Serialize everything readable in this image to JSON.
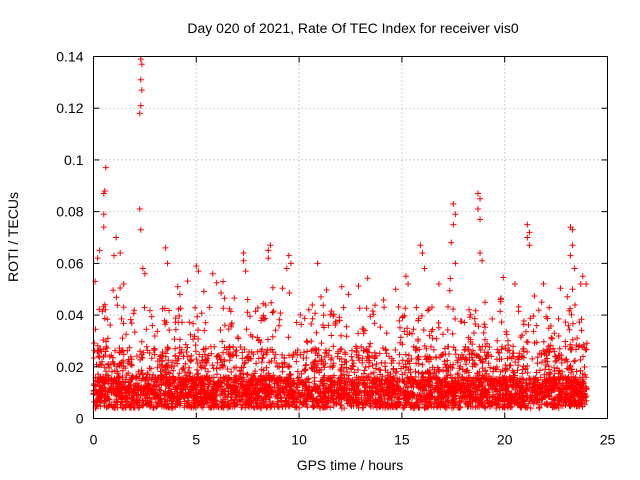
{
  "chart_data": {
    "type": "scatter",
    "title": "Day 020 of 2021, Rate Of TEC Index for receiver vis0",
    "xlabel": "GPS time / hours",
    "ylabel": "ROTI / TECUs",
    "xlim": [
      0,
      25
    ],
    "ylim": [
      0,
      0.14
    ],
    "x_ticks": [
      "0",
      "5",
      "10",
      "15",
      "20",
      "25"
    ],
    "y_ticks": [
      "0",
      "0.02",
      "0.04",
      "0.06",
      "0.08",
      "0.1",
      "0.12",
      "0.14"
    ],
    "grid": true,
    "legend": "none",
    "marker": "plus",
    "series": [
      {
        "color": "#ff0000",
        "x_range": [
          0,
          24
        ],
        "points": [
          [
            0.6,
            0.097
          ],
          [
            0.55,
            0.088
          ],
          [
            0.5,
            0.087
          ],
          [
            0.5,
            0.079
          ],
          [
            0.5,
            0.074
          ],
          [
            0.3,
            0.065
          ],
          [
            0.2,
            0.062
          ],
          [
            1.1,
            0.07
          ],
          [
            1.3,
            0.064
          ],
          [
            1.0,
            0.063
          ],
          [
            2.3,
            0.139
          ],
          [
            2.35,
            0.137
          ],
          [
            2.3,
            0.131
          ],
          [
            2.35,
            0.127
          ],
          [
            2.3,
            0.121
          ],
          [
            2.25,
            0.118
          ],
          [
            2.25,
            0.081
          ],
          [
            2.3,
            0.073
          ],
          [
            2.4,
            0.058
          ],
          [
            2.5,
            0.056
          ],
          [
            3.5,
            0.066
          ],
          [
            3.6,
            0.06
          ],
          [
            4.1,
            0.051
          ],
          [
            4.2,
            0.048
          ],
          [
            5.0,
            0.059
          ],
          [
            5.1,
            0.057
          ],
          [
            5.8,
            0.056
          ],
          [
            6.3,
            0.053
          ],
          [
            7.3,
            0.064
          ],
          [
            7.3,
            0.061
          ],
          [
            7.4,
            0.057
          ],
          [
            7.5,
            0.046
          ],
          [
            8.6,
            0.067
          ],
          [
            8.5,
            0.065
          ],
          [
            8.5,
            0.062
          ],
          [
            9.5,
            0.063
          ],
          [
            9.6,
            0.06
          ],
          [
            9.4,
            0.058
          ],
          [
            10.9,
            0.06
          ],
          [
            12.4,
            0.048
          ],
          [
            13.2,
            0.034
          ],
          [
            14.7,
            0.05
          ],
          [
            15.2,
            0.055
          ],
          [
            15.3,
            0.052
          ],
          [
            15.9,
            0.067
          ],
          [
            16.0,
            0.064
          ],
          [
            16.1,
            0.058
          ],
          [
            16.8,
            0.052
          ],
          [
            17.5,
            0.083
          ],
          [
            17.6,
            0.079
          ],
          [
            17.5,
            0.075
          ],
          [
            17.4,
            0.068
          ],
          [
            17.6,
            0.06
          ],
          [
            18.7,
            0.087
          ],
          [
            18.8,
            0.085
          ],
          [
            18.7,
            0.081
          ],
          [
            18.8,
            0.077
          ],
          [
            18.8,
            0.064
          ],
          [
            18.9,
            0.061
          ],
          [
            19.8,
            0.046
          ],
          [
            20.5,
            0.052
          ],
          [
            21.1,
            0.075
          ],
          [
            21.2,
            0.072
          ],
          [
            21.1,
            0.07
          ],
          [
            21.2,
            0.067
          ],
          [
            21.8,
            0.045
          ],
          [
            23.2,
            0.074
          ],
          [
            23.3,
            0.073
          ],
          [
            23.3,
            0.067
          ],
          [
            23.2,
            0.063
          ],
          [
            23.4,
            0.058
          ],
          [
            23.3,
            0.05
          ],
          [
            23.8,
            0.055
          ],
          [
            23.7,
            0.052
          ]
        ]
      }
    ]
  }
}
